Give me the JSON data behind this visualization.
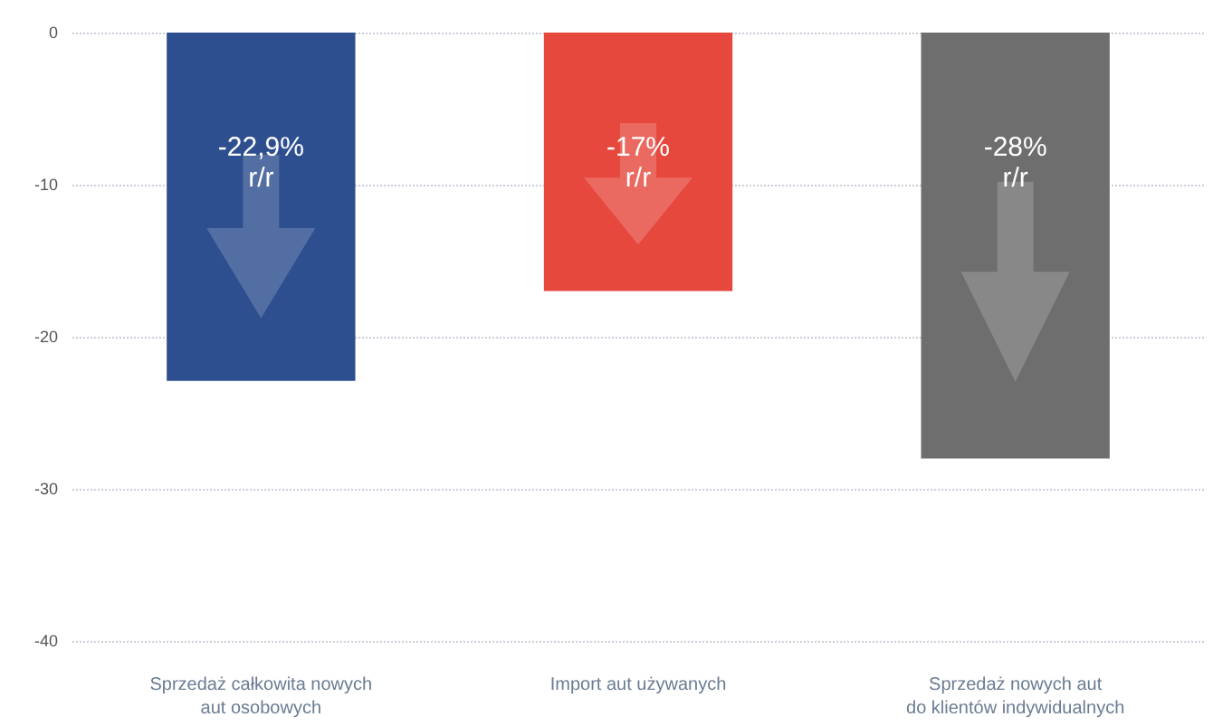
{
  "chart_data": {
    "type": "bar",
    "categories": [
      "Sprzedaż całkowita nowych\naut osobowych",
      "Import aut używanych",
      "Sprzedaż nowych aut\ndo klientów indywidualnych"
    ],
    "values": [
      -22.9,
      -17,
      -28
    ],
    "colors": [
      "#2e4f8f",
      "#e6483e",
      "#6e6e6e"
    ],
    "value_labels": [
      "-22,9%\nr/r",
      "-17%\nr/r",
      "-28%\nr/r"
    ],
    "ylim": [
      -40,
      0
    ],
    "yticks": [
      -40,
      -30,
      -20,
      -10,
      0
    ],
    "grid": "y"
  }
}
